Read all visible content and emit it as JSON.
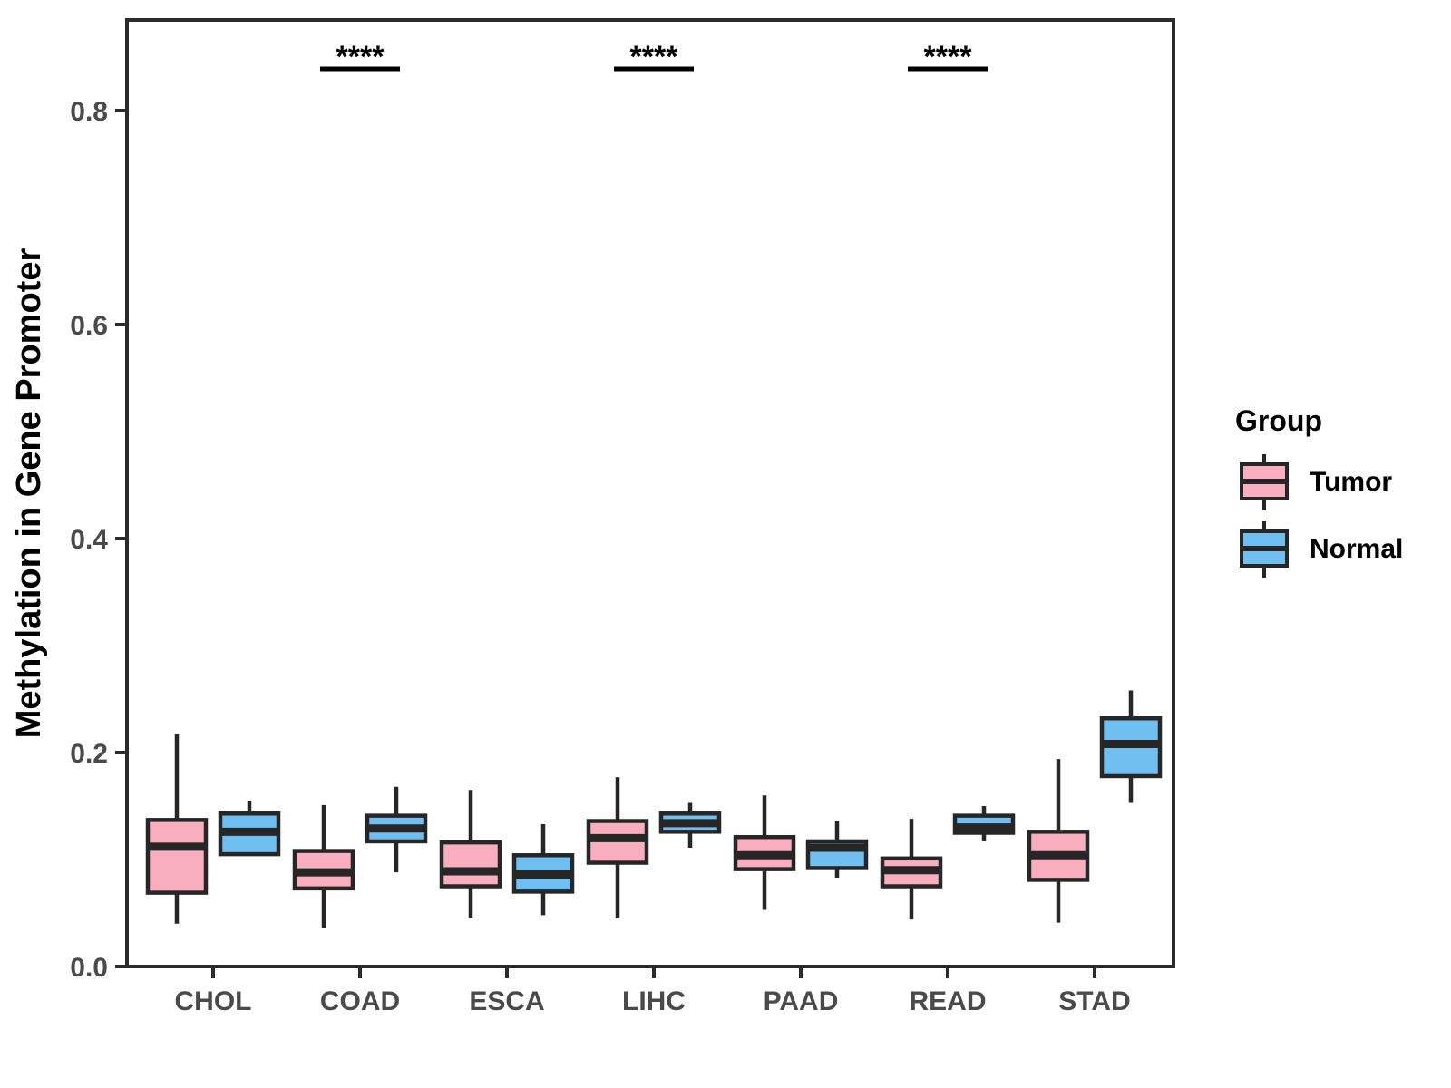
{
  "chart_data": {
    "type": "boxplot",
    "title": "",
    "xlabel": "",
    "ylabel": "Methylation in Gene Promoter",
    "categories": [
      "CHOL",
      "COAD",
      "ESCA",
      "LIHC",
      "PAAD",
      "READ",
      "STAD"
    ],
    "y_ticks": [
      {
        "value": 0.0,
        "label": "0.0"
      },
      {
        "value": 0.2,
        "label": "0.2"
      },
      {
        "value": 0.4,
        "label": "0.4"
      },
      {
        "value": 0.6,
        "label": "0.6"
      },
      {
        "value": 0.8,
        "label": "0.8"
      }
    ],
    "ylim": [
      0,
      0.885
    ],
    "grid": false,
    "box_format": [
      "min",
      "q1",
      "median",
      "q3",
      "max"
    ],
    "series": [
      {
        "name": "Tumor",
        "color": "#F9AEC0",
        "values": [
          [
            0.04,
            0.069,
            0.112,
            0.137,
            0.217
          ],
          [
            0.036,
            0.073,
            0.088,
            0.108,
            0.151
          ],
          [
            0.045,
            0.075,
            0.089,
            0.116,
            0.165
          ],
          [
            0.045,
            0.097,
            0.12,
            0.136,
            0.177
          ],
          [
            0.053,
            0.091,
            0.104,
            0.121,
            0.16
          ],
          [
            0.044,
            0.075,
            0.09,
            0.101,
            0.138
          ],
          [
            0.041,
            0.081,
            0.104,
            0.126,
            0.194
          ]
        ]
      },
      {
        "name": "Normal",
        "color": "#70BFF1",
        "values": [
          [
            0.105,
            0.105,
            0.126,
            0.143,
            0.155
          ],
          [
            0.088,
            0.117,
            0.129,
            0.141,
            0.168
          ],
          [
            0.048,
            0.07,
            0.086,
            0.104,
            0.133
          ],
          [
            0.111,
            0.126,
            0.134,
            0.143,
            0.153
          ],
          [
            0.083,
            0.092,
            0.111,
            0.117,
            0.136
          ],
          [
            0.117,
            0.125,
            0.13,
            0.141,
            0.15
          ],
          [
            0.153,
            0.178,
            0.208,
            0.232,
            0.258
          ]
        ]
      }
    ],
    "significance": [
      {
        "category": "COAD",
        "label": "****"
      },
      {
        "category": "LIHC",
        "label": "****"
      },
      {
        "category": "READ",
        "label": "****"
      }
    ],
    "legend": {
      "title": "Group",
      "position": "right",
      "entries": [
        {
          "label": "Tumor",
          "color": "#F9AEC0"
        },
        {
          "label": "Normal",
          "color": "#70BFF1"
        }
      ]
    },
    "colors": {
      "box_stroke": "#262626",
      "axis": "#2B2B2B",
      "tick_text": "#4A4A4A",
      "significance": "#000000"
    }
  }
}
